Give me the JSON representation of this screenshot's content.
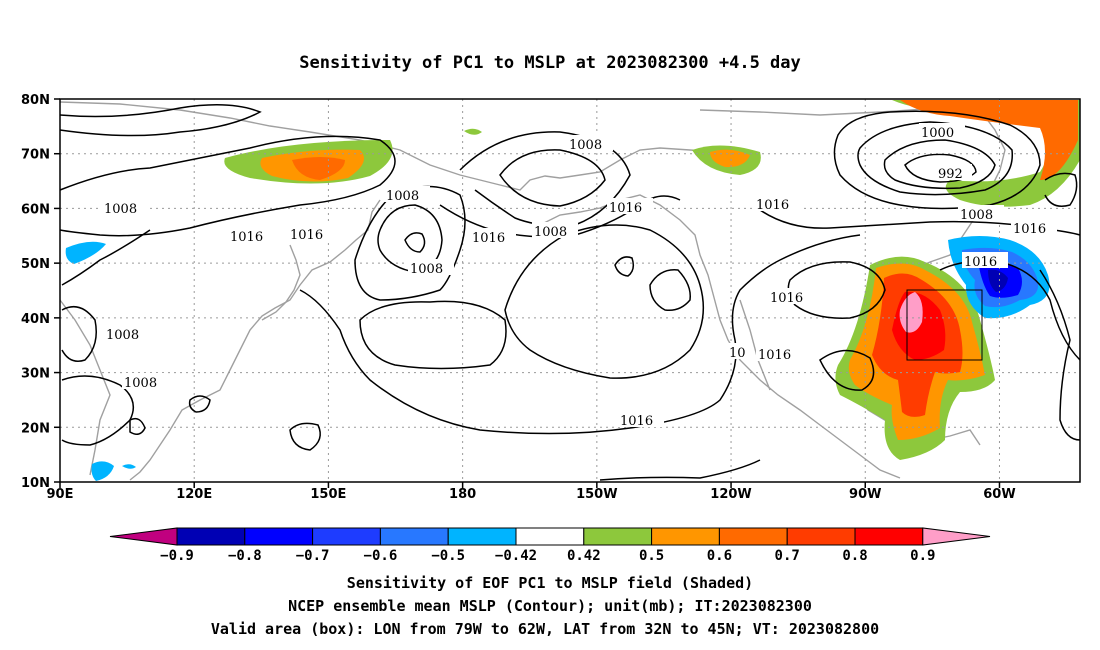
{
  "title": "Sensitivity of PC1 to MSLP at 2023082300 +4.5 day",
  "axes": {
    "lat_labels": [
      "80N",
      "70N",
      "60N",
      "50N",
      "40N",
      "30N",
      "20N",
      "10N"
    ],
    "lat_values": [
      80,
      70,
      60,
      50,
      40,
      30,
      20,
      10
    ],
    "lon_labels": [
      "90E",
      "120E",
      "150E",
      "180",
      "150W",
      "120W",
      "90W",
      "60W"
    ],
    "lon_values": [
      90,
      120,
      150,
      180,
      210,
      240,
      270,
      300
    ],
    "lon_range": [
      90,
      318
    ],
    "lat_range": [
      10,
      80
    ],
    "grid": "dotted"
  },
  "colorbar": {
    "ticks": [
      "-0.9",
      "-0.8",
      "-0.7",
      "-0.6",
      "-0.5",
      "-0.42",
      "0.42",
      "0.5",
      "0.6",
      "0.7",
      "0.8",
      "0.9"
    ],
    "colors": [
      "#c0007f",
      "#0000b4",
      "#0000ff",
      "#1e3cff",
      "#2878ff",
      "#00b4ff",
      "#ffffff",
      "#8dc83c",
      "#ff9600",
      "#ff6a00",
      "#ff3c00",
      "#ff0000",
      "#ff9ec8"
    ]
  },
  "contour_labels": [
    "1008",
    "1008",
    "1008",
    "1008",
    "1008",
    "1008",
    "1008",
    "1016",
    "1016",
    "1016",
    "1016",
    "1016",
    "1016",
    "1016",
    "1016",
    "1016",
    "1016",
    "1016",
    "1000",
    "992",
    "1008",
    "10"
  ],
  "valid_box": {
    "lon": [
      281,
      298
    ],
    "lat": [
      32,
      45
    ]
  },
  "captions": [
    "Sensitivity of EOF PC1 to MSLP field (Shaded)",
    "NCEP ensemble mean MSLP (Contour); unit(mb); IT:2023082300",
    "Valid area (box): LON from 79W to 62W, LAT from 32N to 45N; VT: 2023082800"
  ]
}
